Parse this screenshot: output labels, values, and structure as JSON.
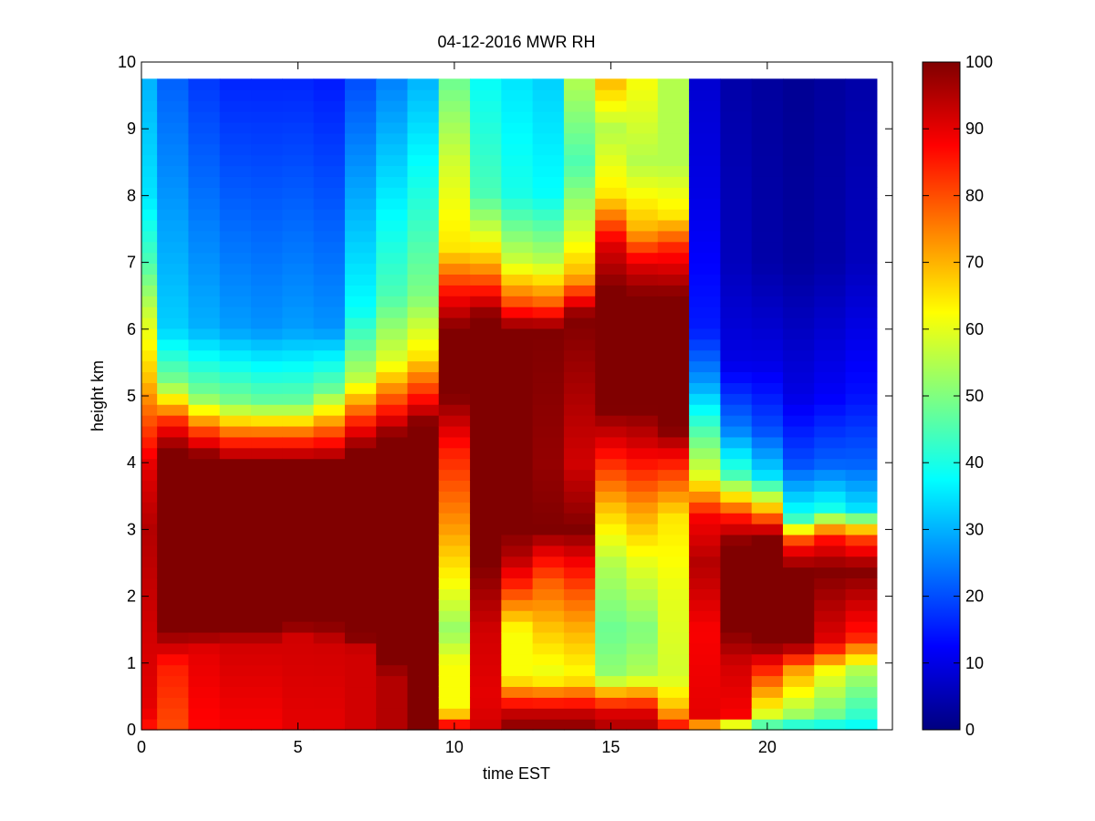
{
  "chart_data": {
    "type": "heatmap",
    "title": "04-12-2016 MWR RH",
    "xlabel": "time EST",
    "ylabel": "height km",
    "xlim": [
      0,
      24
    ],
    "ylim": [
      0,
      10
    ],
    "data_extent": {
      "x": [
        0,
        23.5
      ],
      "y": [
        0,
        9.75
      ]
    },
    "x_ticks": [
      0,
      5,
      10,
      15,
      20
    ],
    "y_ticks": [
      0,
      1,
      2,
      3,
      4,
      5,
      6,
      7,
      8,
      9,
      10
    ],
    "colormap": "jet",
    "clim": [
      0,
      100
    ],
    "colorbar_ticks": [
      0,
      10,
      20,
      30,
      40,
      50,
      60,
      70,
      80,
      90,
      100
    ],
    "grid": false,
    "x_columns": [
      0,
      1,
      2,
      3,
      4,
      5,
      6,
      7,
      8,
      9,
      10,
      11,
      12,
      13,
      14,
      15,
      16,
      17,
      18,
      19,
      20,
      21,
      22,
      23
    ],
    "columns": [
      {
        "x": 0,
        "profile": [
          [
            0,
            85
          ],
          [
            0.3,
            90
          ],
          [
            1.5,
            92
          ],
          [
            3,
            95
          ],
          [
            4,
            90
          ],
          [
            4.6,
            80
          ],
          [
            5.3,
            68
          ],
          [
            6.2,
            58
          ],
          [
            7,
            45
          ],
          [
            8,
            35
          ],
          [
            9.75,
            30
          ]
        ]
      },
      {
        "x": 1,
        "profile": [
          [
            0,
            80
          ],
          [
            1,
            85
          ],
          [
            1.5,
            100
          ],
          [
            4.2,
            100
          ],
          [
            4.6,
            85
          ],
          [
            5.2,
            50
          ],
          [
            6,
            33
          ],
          [
            9.75,
            22
          ]
        ]
      },
      {
        "x": 2,
        "profile": [
          [
            0,
            87
          ],
          [
            1.2,
            90
          ],
          [
            1.5,
            100
          ],
          [
            4.1,
            100
          ],
          [
            4.5,
            80
          ],
          [
            5,
            50
          ],
          [
            6,
            30
          ],
          [
            9.75,
            18
          ]
        ]
      },
      {
        "x": 3,
        "profile": [
          [
            0,
            88
          ],
          [
            1.3,
            92
          ],
          [
            1.5,
            100
          ],
          [
            4.0,
            100
          ],
          [
            4.4,
            80
          ],
          [
            4.9,
            50
          ],
          [
            6,
            28
          ],
          [
            9.75,
            16
          ]
        ]
      },
      {
        "x": 4,
        "profile": [
          [
            0,
            88
          ],
          [
            1.3,
            92
          ],
          [
            1.5,
            100
          ],
          [
            4.0,
            100
          ],
          [
            4.4,
            80
          ],
          [
            4.9,
            48
          ],
          [
            6,
            27
          ],
          [
            9.75,
            16
          ]
        ]
      },
      {
        "x": 5,
        "profile": [
          [
            0,
            90
          ],
          [
            1.4,
            92
          ],
          [
            1.6,
            100
          ],
          [
            4.0,
            100
          ],
          [
            4.4,
            80
          ],
          [
            4.9,
            48
          ],
          [
            6,
            28
          ],
          [
            9.75,
            16
          ]
        ]
      },
      {
        "x": 6,
        "profile": [
          [
            0,
            90
          ],
          [
            1.3,
            92
          ],
          [
            1.6,
            100
          ],
          [
            4.0,
            100
          ],
          [
            4.5,
            78
          ],
          [
            5.1,
            48
          ],
          [
            6,
            27
          ],
          [
            9.75,
            15
          ]
        ]
      },
      {
        "x": 7,
        "profile": [
          [
            0,
            92
          ],
          [
            1.2,
            92
          ],
          [
            1.4,
            100
          ],
          [
            4.2,
            100
          ],
          [
            4.6,
            85
          ],
          [
            5.3,
            55
          ],
          [
            6.3,
            38
          ],
          [
            9.75,
            20
          ]
        ]
      },
      {
        "x": 8,
        "profile": [
          [
            0,
            95
          ],
          [
            0.8,
            95
          ],
          [
            1.0,
            100
          ],
          [
            4.4,
            100
          ],
          [
            4.8,
            85
          ],
          [
            5.5,
            60
          ],
          [
            6.5,
            45
          ],
          [
            9.75,
            25
          ]
        ]
      },
      {
        "x": 9,
        "profile": [
          [
            0,
            100
          ],
          [
            4.6,
            100
          ],
          [
            5.0,
            85
          ],
          [
            5.6,
            65
          ],
          [
            6.5,
            50
          ],
          [
            9.75,
            30
          ]
        ]
      },
      {
        "x": 10,
        "profile": [
          [
            0,
            95
          ],
          [
            0.3,
            62
          ],
          [
            1.0,
            62
          ],
          [
            1.5,
            52
          ],
          [
            2.2,
            62
          ],
          [
            3.0,
            72
          ],
          [
            4.2,
            85
          ],
          [
            5.0,
            100
          ],
          [
            6.0,
            100
          ],
          [
            6.6,
            85
          ],
          [
            7.2,
            65
          ],
          [
            8.5,
            58
          ],
          [
            9.75,
            48
          ]
        ]
      },
      {
        "x": 11,
        "profile": [
          [
            0,
            92
          ],
          [
            0.5,
            90
          ],
          [
            1.5,
            92
          ],
          [
            2.5,
            100
          ],
          [
            4.2,
            100
          ],
          [
            5.5,
            100
          ],
          [
            6.2,
            100
          ],
          [
            7.0,
            70
          ],
          [
            8.0,
            45
          ],
          [
            9.75,
            38
          ]
        ]
      },
      {
        "x": 12,
        "profile": [
          [
            0,
            100
          ],
          [
            0.3,
            92
          ],
          [
            0.8,
            62
          ],
          [
            1.5,
            62
          ],
          [
            2.2,
            85
          ],
          [
            2.6,
            95
          ],
          [
            3.0,
            100
          ],
          [
            4.0,
            100
          ],
          [
            6.0,
            100
          ],
          [
            6.4,
            80
          ],
          [
            7.0,
            58
          ],
          [
            8.0,
            40
          ],
          [
            9.75,
            35
          ]
        ]
      },
      {
        "x": 13,
        "profile": [
          [
            0,
            100
          ],
          [
            0.3,
            92
          ],
          [
            0.8,
            60
          ],
          [
            1.5,
            68
          ],
          [
            2.2,
            78
          ],
          [
            2.6,
            88
          ],
          [
            3.0,
            100
          ],
          [
            4.0,
            98
          ],
          [
            6.0,
            100
          ],
          [
            6.4,
            78
          ],
          [
            7.0,
            56
          ],
          [
            8.0,
            38
          ],
          [
            9.75,
            33
          ]
        ]
      },
      {
        "x": 14,
        "profile": [
          [
            0,
            100
          ],
          [
            0.3,
            92
          ],
          [
            0.8,
            62
          ],
          [
            1.5,
            70
          ],
          [
            2.0,
            78
          ],
          [
            2.5,
            88
          ],
          [
            3.0,
            100
          ],
          [
            4.0,
            92
          ],
          [
            6.2,
            100
          ],
          [
            6.8,
            70
          ],
          [
            7.5,
            58
          ],
          [
            8.5,
            45
          ],
          [
            9.75,
            55
          ]
        ]
      },
      {
        "x": 15,
        "profile": [
          [
            0,
            96
          ],
          [
            0.3,
            90
          ],
          [
            0.8,
            52
          ],
          [
            1.5,
            48
          ],
          [
            2.5,
            55
          ],
          [
            3.3,
            68
          ],
          [
            4.3,
            90
          ],
          [
            4.8,
            100
          ],
          [
            6.6,
            100
          ],
          [
            7.3,
            90
          ],
          [
            8.0,
            65
          ],
          [
            9.0,
            55
          ],
          [
            9.75,
            70
          ]
        ]
      },
      {
        "x": 16,
        "profile": [
          [
            0,
            96
          ],
          [
            0.3,
            90
          ],
          [
            0.8,
            55
          ],
          [
            1.5,
            50
          ],
          [
            2.5,
            60
          ],
          [
            3.3,
            72
          ],
          [
            4.3,
            92
          ],
          [
            4.8,
            100
          ],
          [
            6.5,
            100
          ],
          [
            7.0,
            90
          ],
          [
            7.5,
            70
          ],
          [
            8.5,
            55
          ],
          [
            9.75,
            62
          ]
        ]
      },
      {
        "x": 17,
        "profile": [
          [
            0,
            90
          ],
          [
            0.3,
            70
          ],
          [
            0.8,
            58
          ],
          [
            2.0,
            60
          ],
          [
            3.2,
            65
          ],
          [
            4.0,
            85
          ],
          [
            4.5,
            100
          ],
          [
            6.5,
            100
          ],
          [
            7.2,
            85
          ],
          [
            7.7,
            65
          ],
          [
            8.5,
            55
          ],
          [
            9.75,
            55
          ]
        ]
      },
      {
        "x": 18,
        "profile": [
          [
            0,
            62
          ],
          [
            0.2,
            90
          ],
          [
            1.5,
            88
          ],
          [
            2.5,
            95
          ],
          [
            3.2,
            88
          ],
          [
            3.8,
            60
          ],
          [
            4.5,
            45
          ],
          [
            5.2,
            28
          ],
          [
            6.0,
            15
          ],
          [
            8.0,
            10
          ],
          [
            9.75,
            8
          ]
        ]
      },
      {
        "x": 19,
        "profile": [
          [
            0,
            42
          ],
          [
            0.2,
            88
          ],
          [
            1.0,
            92
          ],
          [
            1.5,
            100
          ],
          [
            2.8,
            100
          ],
          [
            3.2,
            85
          ],
          [
            3.8,
            45
          ],
          [
            4.5,
            25
          ],
          [
            5.5,
            10
          ],
          [
            7.0,
            6
          ],
          [
            9.75,
            4
          ]
        ]
      },
      {
        "x": 20,
        "profile": [
          [
            0,
            38
          ],
          [
            0.2,
            58
          ],
          [
            0.8,
            80
          ],
          [
            1.3,
            100
          ],
          [
            2.9,
            100
          ],
          [
            3.3,
            70
          ],
          [
            3.8,
            35
          ],
          [
            4.5,
            20
          ],
          [
            5.5,
            10
          ],
          [
            7.0,
            4
          ],
          [
            9.75,
            3
          ]
        ]
      },
      {
        "x": 21,
        "profile": [
          [
            0,
            35
          ],
          [
            0.2,
            52
          ],
          [
            0.9,
            72
          ],
          [
            1.3,
            100
          ],
          [
            2.4,
            100
          ],
          [
            2.8,
            85
          ],
          [
            3.2,
            40
          ],
          [
            4.0,
            20
          ],
          [
            5.0,
            10
          ],
          [
            7.0,
            3
          ],
          [
            9.75,
            2
          ]
        ]
      },
      {
        "x": 22,
        "profile": [
          [
            0,
            35
          ],
          [
            0.2,
            48
          ],
          [
            0.9,
            62
          ],
          [
            1.3,
            90
          ],
          [
            2.4,
            100
          ],
          [
            2.9,
            85
          ],
          [
            3.3,
            40
          ],
          [
            4.0,
            22
          ],
          [
            5.0,
            12
          ],
          [
            7.0,
            4
          ],
          [
            9.75,
            3
          ]
        ]
      },
      {
        "x": 23,
        "profile": [
          [
            0,
            36
          ],
          [
            0.2,
            42
          ],
          [
            0.9,
            55
          ],
          [
            1.4,
            85
          ],
          [
            2.4,
            100
          ],
          [
            2.9,
            80
          ],
          [
            3.3,
            35
          ],
          [
            4.0,
            22
          ],
          [
            5.0,
            14
          ],
          [
            7.0,
            6
          ],
          [
            9.75,
            4
          ]
        ]
      }
    ]
  }
}
